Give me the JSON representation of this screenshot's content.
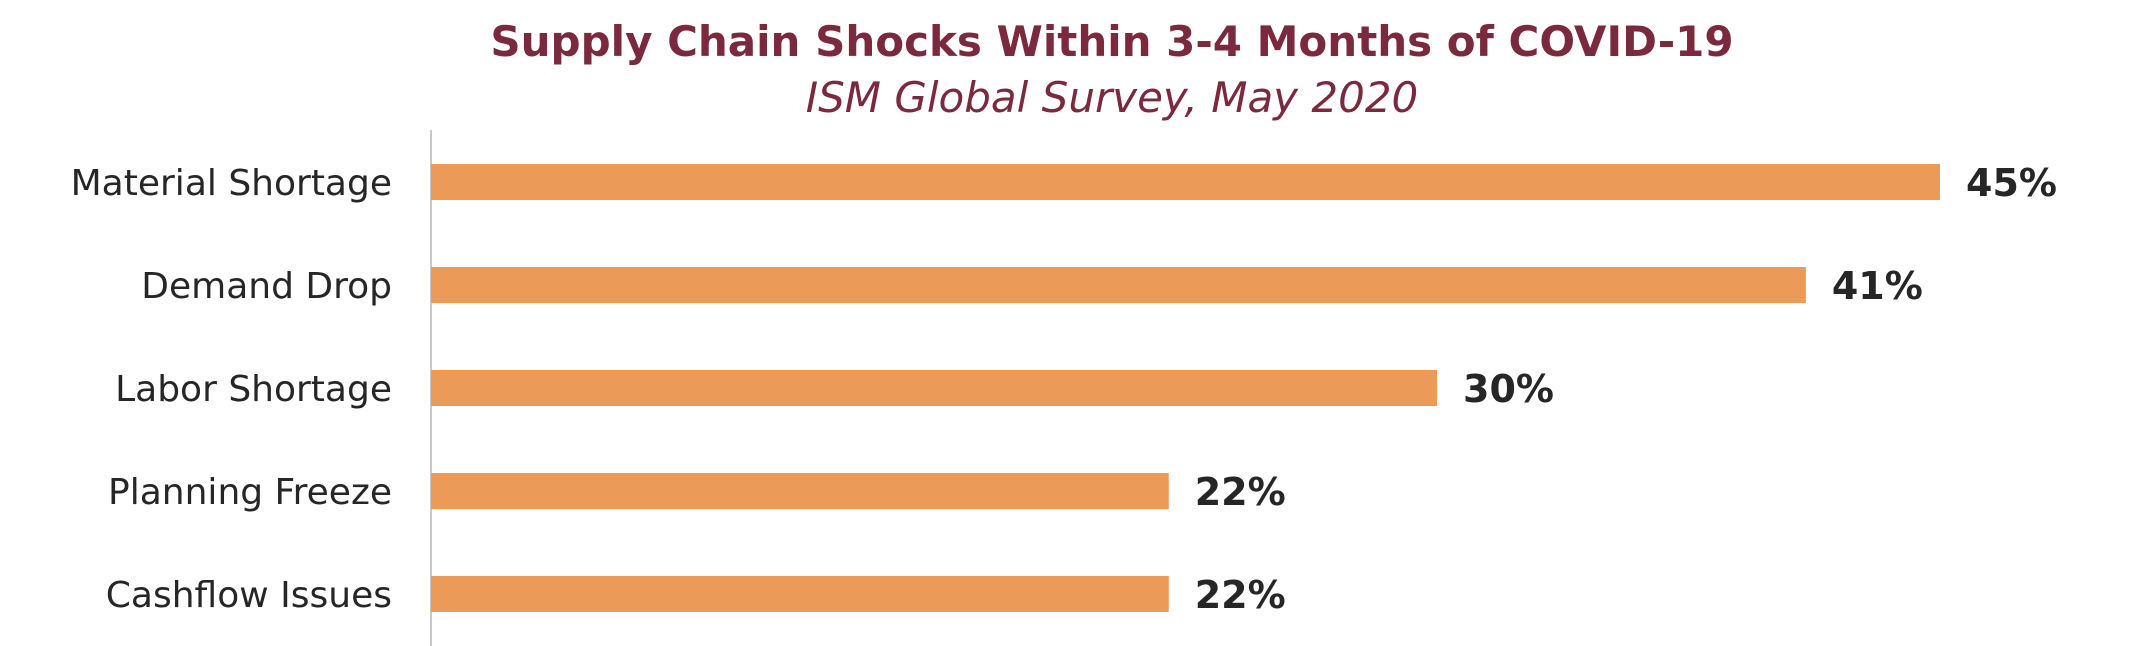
{
  "chart_data": {
    "type": "bar",
    "orientation": "horizontal",
    "title": "Supply Chain Shocks Within 3-4 Months of COVID-19",
    "subtitle": "ISM Global Survey, May 2020",
    "categories": [
      "Material Shortage",
      "Demand Drop",
      "Labor Shortage",
      "Planning Freeze",
      "Cashflow Issues"
    ],
    "values": [
      45,
      41,
      30,
      22,
      22
    ],
    "value_labels": [
      "45%",
      "41%",
      "30%",
      "22%",
      "22%"
    ],
    "xlim": [
      0,
      45
    ],
    "grid": false,
    "legend": "none",
    "colors": {
      "bar": "#EB9A57",
      "title": "#7B2A3D",
      "axis": "#C8C8C8",
      "text": "#262626"
    }
  }
}
